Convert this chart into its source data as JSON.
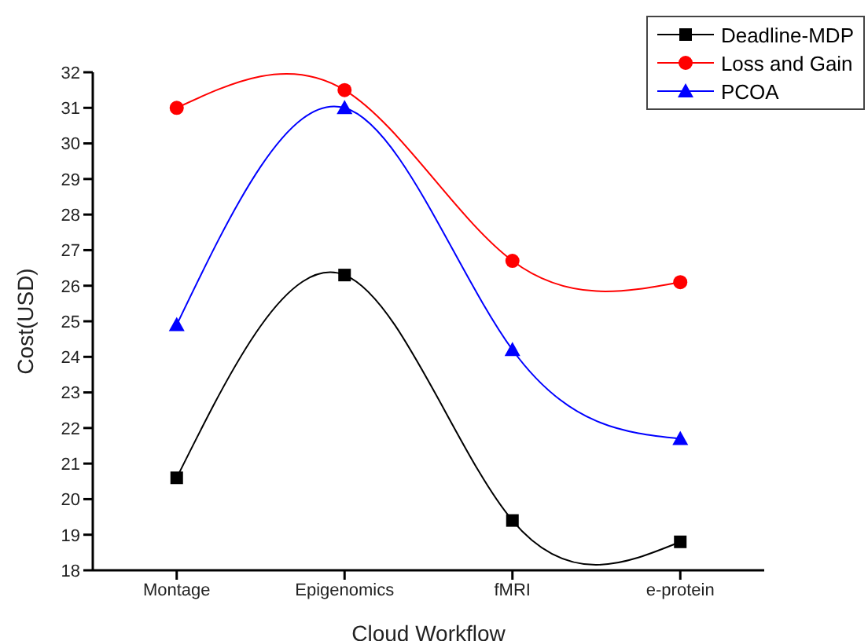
{
  "chart_data": {
    "type": "line",
    "xlabel": "Cloud Workflow",
    "ylabel": "Cost(USD)",
    "categories": [
      "Montage",
      "Epigenomics",
      "fMRI",
      "e-protein"
    ],
    "series": [
      {
        "name": "Deadline-MDP",
        "color": "#000000",
        "marker": "square",
        "values": [
          20.6,
          26.3,
          19.4,
          18.8
        ]
      },
      {
        "name": "Loss and Gain",
        "color": "#ff0000",
        "marker": "circle",
        "values": [
          31.0,
          31.5,
          26.7,
          26.1
        ]
      },
      {
        "name": "PCOA",
        "color": "#0000ff",
        "marker": "triangle",
        "values": [
          24.9,
          31.0,
          24.2,
          21.7
        ]
      }
    ],
    "ylim": [
      18,
      32
    ],
    "yticks": [
      18,
      19,
      20,
      21,
      22,
      23,
      24,
      25,
      26,
      27,
      28,
      29,
      30,
      31,
      32
    ],
    "grid": false,
    "legend": "top right",
    "line_style": "solid"
  }
}
